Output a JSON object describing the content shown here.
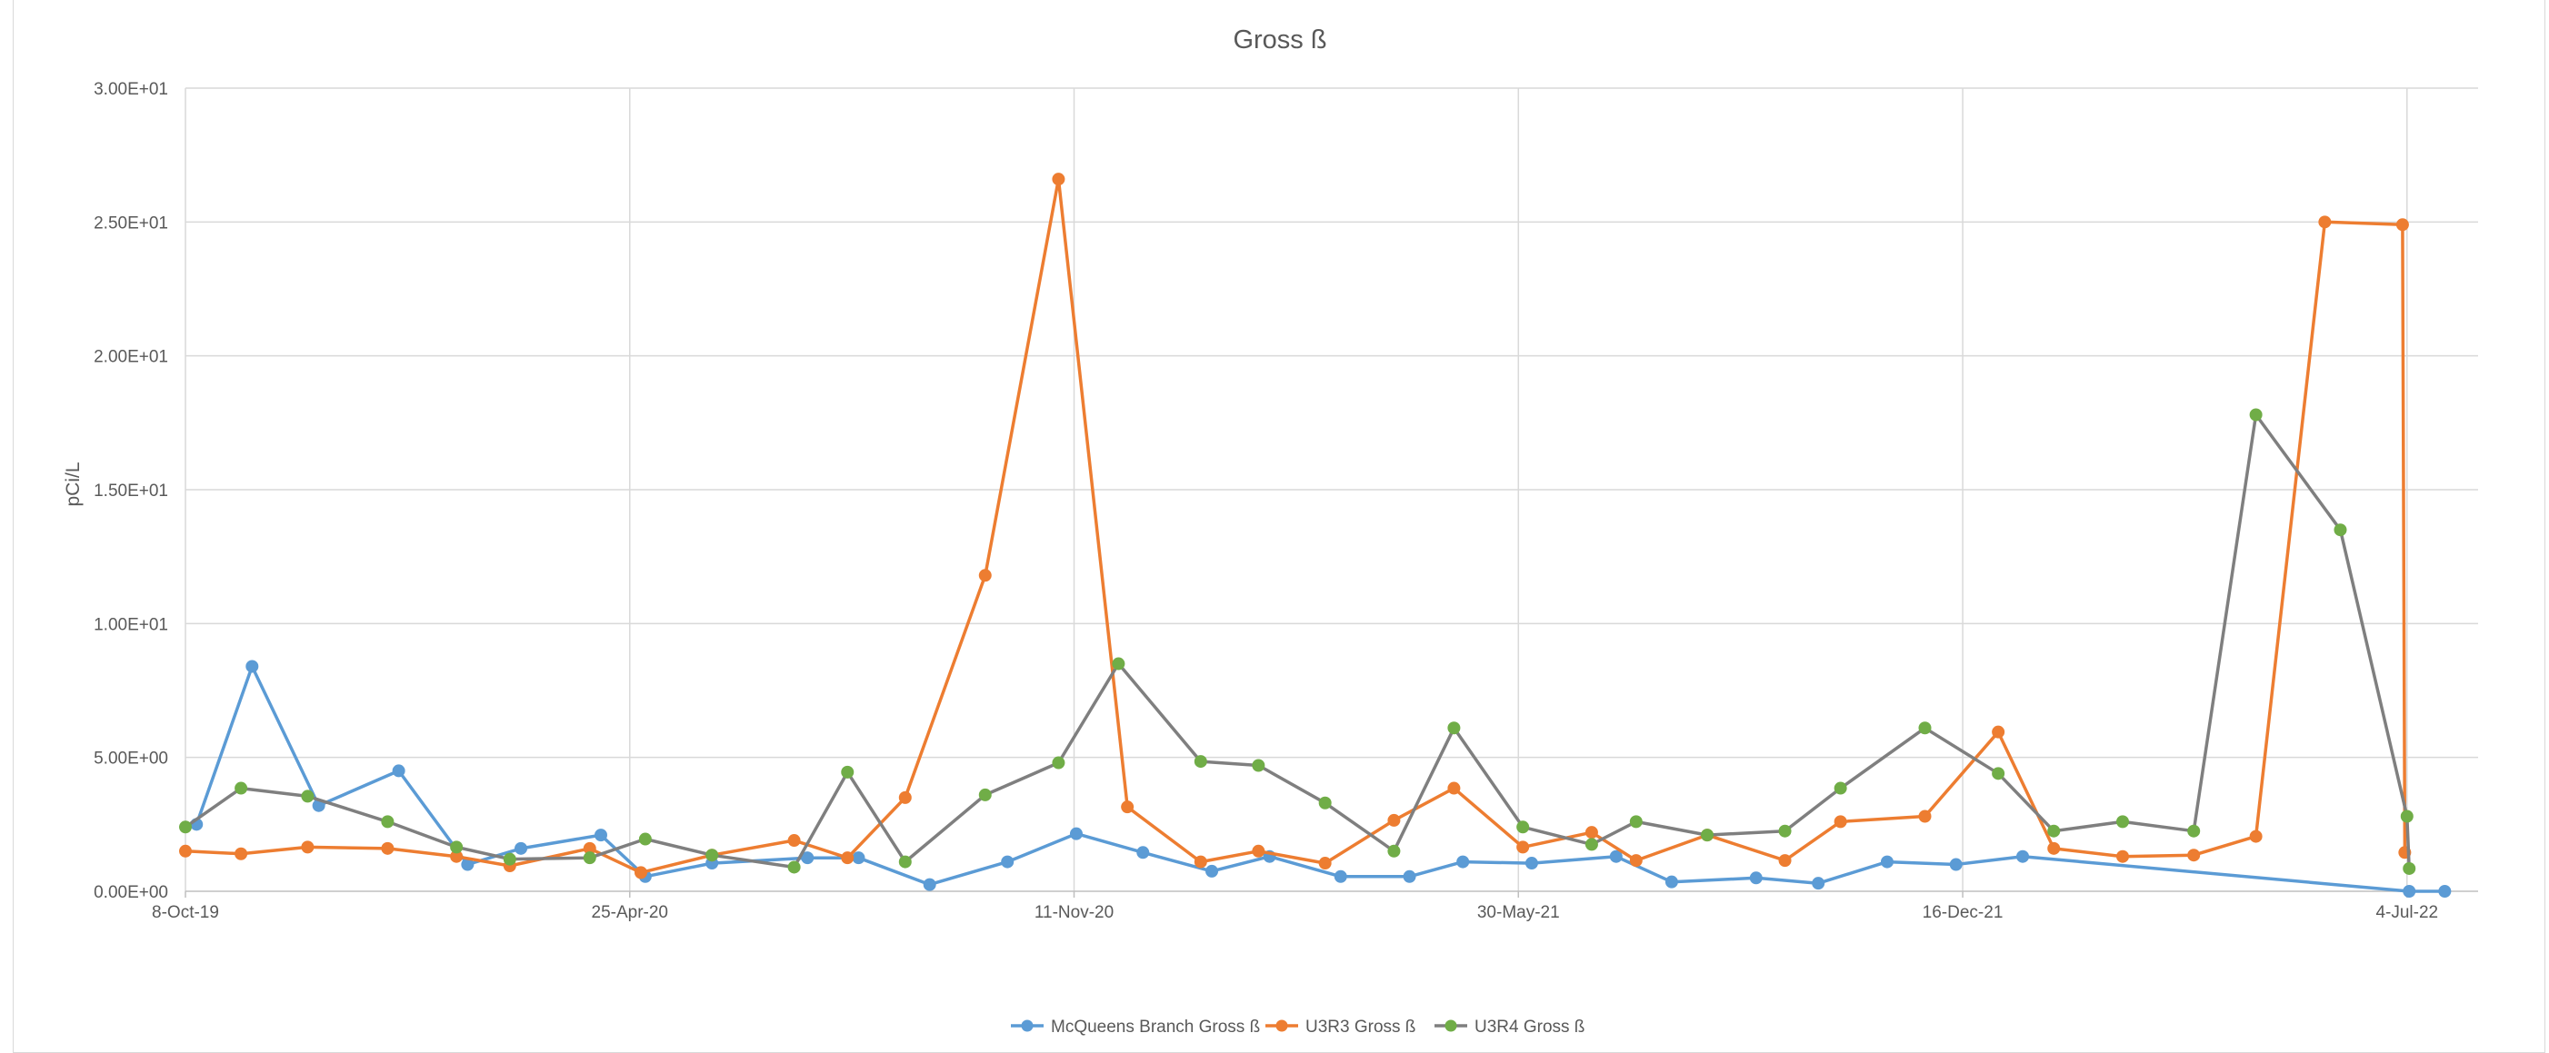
{
  "chart_data": {
    "type": "line",
    "title": "Gross ß",
    "xlabel": "",
    "ylabel": "pCi/L",
    "ylim": [
      0,
      30
    ],
    "y_ticks": [
      "0.00E+00",
      "5.00E+00",
      "1.00E+01",
      "1.50E+01",
      "2.00E+01",
      "2.50E+01",
      "3.00E+01"
    ],
    "x_ticks": [
      {
        "label": "8-Oct-19",
        "date": "2019-10-08"
      },
      {
        "label": "25-Apr-20",
        "date": "2020-04-25"
      },
      {
        "label": "11-Nov-20",
        "date": "2020-11-11"
      },
      {
        "label": "30-May-21",
        "date": "2021-05-30"
      },
      {
        "label": "16-Dec-21",
        "date": "2021-12-16"
      },
      {
        "label": "4-Jul-22",
        "date": "2022-07-04"
      }
    ],
    "xlim": [
      "2019-10-08",
      "2022-08-05"
    ],
    "grid": true,
    "legend_position": "bottom",
    "series": [
      {
        "name": "McQueens Branch Gross ß",
        "color": "#5b9bd5",
        "points": [
          [
            "2019-10-13",
            2.5
          ],
          [
            "2019-11-07",
            8.4
          ],
          [
            "2019-12-07",
            3.2
          ],
          [
            "2020-01-12",
            4.5
          ],
          [
            "2020-02-12",
            1.0
          ],
          [
            "2020-03-07",
            1.6
          ],
          [
            "2020-04-12",
            2.1
          ],
          [
            "2020-05-02",
            0.55
          ],
          [
            "2020-06-01",
            1.05
          ],
          [
            "2020-07-14",
            1.25
          ],
          [
            "2020-08-06",
            1.25
          ],
          [
            "2020-09-07",
            0.25
          ],
          [
            "2020-10-12",
            1.1
          ],
          [
            "2020-11-12",
            2.15
          ],
          [
            "2020-12-12",
            1.45
          ],
          [
            "2021-01-12",
            0.75
          ],
          [
            "2021-02-07",
            1.3
          ],
          [
            "2021-03-11",
            0.55
          ],
          [
            "2021-04-11",
            0.55
          ],
          [
            "2021-05-05",
            1.1
          ],
          [
            "2021-06-05",
            1.05
          ],
          [
            "2021-07-13",
            1.3
          ],
          [
            "2021-08-07",
            0.35
          ],
          [
            "2021-09-14",
            0.5
          ],
          [
            "2021-10-12",
            0.3
          ],
          [
            "2021-11-12",
            1.1
          ],
          [
            "2021-12-13",
            1.0
          ],
          [
            "2022-01-12",
            1.3
          ],
          [
            "2022-07-05",
            0.0
          ],
          [
            "2022-07-21",
            0.0
          ]
        ]
      },
      {
        "name": "U3R3 Gross ß",
        "color": "#ed7d31",
        "points": [
          [
            "2019-10-08",
            1.5
          ],
          [
            "2019-11-02",
            1.4
          ],
          [
            "2019-12-02",
            1.65
          ],
          [
            "2020-01-07",
            1.6
          ],
          [
            "2020-02-07",
            1.3
          ],
          [
            "2020-03-02",
            0.95
          ],
          [
            "2020-04-07",
            1.6
          ],
          [
            "2020-04-30",
            0.7
          ],
          [
            "2020-06-01",
            1.35
          ],
          [
            "2020-07-08",
            1.9
          ],
          [
            "2020-08-01",
            1.25
          ],
          [
            "2020-08-27",
            3.5
          ],
          [
            "2020-10-02",
            11.8
          ],
          [
            "2020-11-04",
            26.6
          ],
          [
            "2020-12-05",
            3.15
          ],
          [
            "2021-01-07",
            1.1
          ],
          [
            "2021-02-02",
            1.5
          ],
          [
            "2021-03-04",
            1.05
          ],
          [
            "2021-04-04",
            2.65
          ],
          [
            "2021-05-01",
            3.85
          ],
          [
            "2021-06-01",
            1.65
          ],
          [
            "2021-07-02",
            2.2
          ],
          [
            "2021-07-22",
            1.15
          ],
          [
            "2021-08-23",
            2.1
          ],
          [
            "2021-09-27",
            1.15
          ],
          [
            "2021-10-22",
            2.6
          ],
          [
            "2021-11-29",
            2.8
          ],
          [
            "2022-01-01",
            5.95
          ],
          [
            "2022-01-26",
            1.6
          ],
          [
            "2022-02-26",
            1.3
          ],
          [
            "2022-03-30",
            1.35
          ],
          [
            "2022-04-27",
            2.05
          ],
          [
            "2022-05-28",
            25.0
          ],
          [
            "2022-07-02",
            24.9
          ],
          [
            "2022-07-03",
            1.45
          ]
        ]
      },
      {
        "name": "U3R4 Gross ß",
        "color": "#7f7f7f",
        "marker": "#70ad47",
        "points": [
          [
            "2019-10-08",
            2.4
          ],
          [
            "2019-11-02",
            3.85
          ],
          [
            "2019-12-02",
            3.55
          ],
          [
            "2020-01-07",
            2.6
          ],
          [
            "2020-02-07",
            1.65
          ],
          [
            "2020-03-02",
            1.2
          ],
          [
            "2020-04-07",
            1.25
          ],
          [
            "2020-05-02",
            1.95
          ],
          [
            "2020-06-01",
            1.35
          ],
          [
            "2020-07-08",
            0.9
          ],
          [
            "2020-08-01",
            4.45
          ],
          [
            "2020-08-27",
            1.1
          ],
          [
            "2020-10-02",
            3.6
          ],
          [
            "2020-11-04",
            4.8
          ],
          [
            "2020-12-01",
            8.5
          ],
          [
            "2021-01-07",
            4.85
          ],
          [
            "2021-02-02",
            4.7
          ],
          [
            "2021-03-04",
            3.3
          ],
          [
            "2021-04-04",
            1.5
          ],
          [
            "2021-05-01",
            6.1
          ],
          [
            "2021-06-01",
            2.4
          ],
          [
            "2021-07-02",
            1.75
          ],
          [
            "2021-07-22",
            2.6
          ],
          [
            "2021-08-23",
            2.1
          ],
          [
            "2021-09-27",
            2.25
          ],
          [
            "2021-10-22",
            3.85
          ],
          [
            "2021-11-29",
            6.1
          ],
          [
            "2022-01-01",
            4.4
          ],
          [
            "2022-01-26",
            2.25
          ],
          [
            "2022-02-26",
            2.6
          ],
          [
            "2022-03-30",
            2.25
          ],
          [
            "2022-04-27",
            17.8
          ],
          [
            "2022-06-04",
            13.5
          ],
          [
            "2022-07-04",
            2.8
          ],
          [
            "2022-07-05",
            0.85
          ]
        ]
      }
    ]
  }
}
